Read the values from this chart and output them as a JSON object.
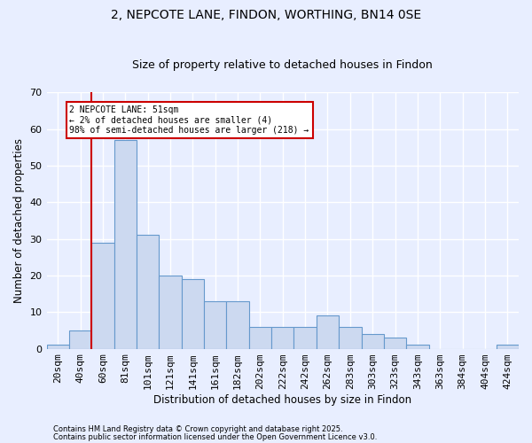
{
  "title1": "2, NEPCOTE LANE, FINDON, WORTHING, BN14 0SE",
  "title2": "Size of property relative to detached houses in Findon",
  "xlabel": "Distribution of detached houses by size in Findon",
  "ylabel": "Number of detached properties",
  "bar_color": "#ccd9f0",
  "bar_edge_color": "#6699cc",
  "background_color": "#e8eeff",
  "fig_background": "#e8eeff",
  "grid_color": "#ffffff",
  "bins": [
    "20sqm",
    "40sqm",
    "60sqm",
    "81sqm",
    "101sqm",
    "121sqm",
    "141sqm",
    "161sqm",
    "182sqm",
    "202sqm",
    "222sqm",
    "242sqm",
    "262sqm",
    "283sqm",
    "303sqm",
    "323sqm",
    "343sqm",
    "363sqm",
    "384sqm",
    "404sqm",
    "424sqm"
  ],
  "values": [
    1,
    5,
    29,
    57,
    31,
    20,
    19,
    13,
    13,
    6,
    6,
    6,
    9,
    6,
    4,
    3,
    1,
    0,
    0,
    0,
    1
  ],
  "ylim": [
    0,
    70
  ],
  "yticks": [
    0,
    10,
    20,
    30,
    40,
    50,
    60,
    70
  ],
  "vline_x": 1.5,
  "vline_color": "#cc0000",
  "annotation_title": "2 NEPCOTE LANE: 51sqm",
  "annotation_line2": "← 2% of detached houses are smaller (4)",
  "annotation_line3": "98% of semi-detached houses are larger (218) →",
  "footer1": "Contains HM Land Registry data © Crown copyright and database right 2025.",
  "footer2": "Contains public sector information licensed under the Open Government Licence v3.0."
}
